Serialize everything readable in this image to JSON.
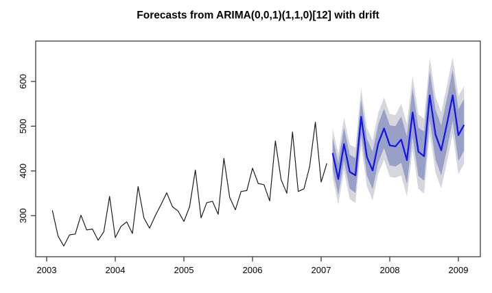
{
  "title": "Forecasts from ARIMA(0,0,1)(1,1,0)[12] with drift",
  "colors": {
    "observed_line": "#1a1a1a",
    "forecast_line": "#1414e6",
    "band_80": "#98a0c8",
    "band_95": "#d6d6de",
    "axis": "#3a3a3a",
    "background": "#ffffff"
  },
  "chart_data": {
    "type": "line",
    "title": "Forecasts from ARIMA(0,0,1)(1,1,0)[12] with drift",
    "xlabel": "",
    "ylabel": "",
    "x_tick_labels": [
      "2003",
      "2004",
      "2005",
      "2006",
      "2007",
      "2008",
      "2009"
    ],
    "x_tick_values": [
      2003,
      2004,
      2005,
      2006,
      2007,
      2008,
      2009
    ],
    "y_tick_labels": [
      "300",
      "400",
      "500",
      "600"
    ],
    "y_tick_values": [
      300,
      400,
      500,
      600
    ],
    "xlim": [
      2002.84,
      2009.32
    ],
    "ylim": [
      208,
      690
    ],
    "grid": false,
    "legend": "none",
    "frequency_per_year": 12,
    "series": [
      {
        "name": "observed",
        "style": "solid-black-line",
        "t_start": 2003.0833,
        "t_step": 0.08333,
        "values": [
          312,
          254,
          232,
          257,
          259,
          301,
          268,
          270,
          245,
          264,
          343,
          251,
          276,
          286,
          260,
          365,
          295,
          272,
          300,
          325,
          351,
          320,
          310,
          287,
          320,
          402,
          295,
          329,
          332,
          303,
          428,
          341,
          313,
          354,
          356,
          406,
          372,
          369,
          333,
          467,
          380,
          350,
          487,
          354,
          360,
          410,
          509,
          375,
          417
        ]
      },
      {
        "name": "forecast-mean",
        "style": "solid-blue-line",
        "t_start": 2007.1667,
        "t_step": 0.08333,
        "values": [
          440,
          382,
          460,
          398,
          390,
          521,
          431,
          401,
          462,
          495,
          457,
          455,
          470,
          424,
          531,
          443,
          433,
          569,
          481,
          446,
          505,
          569,
          480,
          503
        ]
      }
    ],
    "intervals": {
      "t_start": 2007.1667,
      "t_step": 0.08333,
      "level_80": {
        "lo": [
          405,
          346,
          423,
          360,
          351,
          481,
          390,
          359,
          419,
          451,
          412,
          410,
          418,
          371,
          477,
          389,
          378,
          514,
          425,
          390,
          448,
          512,
          422,
          445
        ],
        "hi": [
          475,
          418,
          497,
          436,
          429,
          561,
          472,
          443,
          505,
          539,
          502,
          500,
          522,
          477,
          585,
          497,
          488,
          624,
          537,
          502,
          562,
          626,
          538,
          561
        ]
      },
      "level_95": {
        "lo": [
          385,
          325,
          401,
          337,
          328,
          457,
          366,
          334,
          394,
          426,
          387,
          385,
          390,
          343,
          449,
          360,
          349,
          485,
          396,
          361,
          419,
          483,
          393,
          416
        ],
        "hi": [
          495,
          439,
          519,
          459,
          452,
          585,
          496,
          468,
          530,
          564,
          527,
          525,
          550,
          505,
          613,
          526,
          517,
          653,
          566,
          531,
          591,
          655,
          567,
          590
        ]
      }
    }
  }
}
